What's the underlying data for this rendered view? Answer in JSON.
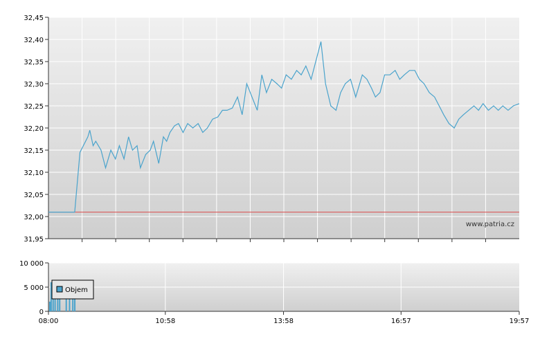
{
  "watermark": "www.patria.cz",
  "colors": {
    "price_line": "#4aa3cc",
    "reference_line": "#d94b4b",
    "volume_bar": "#4aa3cc",
    "grid": "#ffffff",
    "axis": "#333333"
  },
  "chart_data": [
    {
      "type": "line",
      "title": "",
      "xlabel": "",
      "ylabel": "",
      "ylim": [
        31.95,
        32.45
      ],
      "y_ticks": [
        "32,45",
        "32,40",
        "32,35",
        "32,30",
        "32,25",
        "32,20",
        "32,15",
        "32,10",
        "32,05",
        "32,00",
        "31,95"
      ],
      "reference_value": 32.01,
      "grid": true,
      "series": [
        {
          "x": [
            "08:00",
            "08:40",
            "08:48",
            "09:00",
            "09:03",
            "09:08",
            "09:12",
            "09:20",
            "09:27",
            "09:35",
            "09:42",
            "09:48",
            "09:55",
            "10:02",
            "10:08",
            "10:15",
            "10:20",
            "10:28",
            "10:35",
            "10:40",
            "10:48",
            "10:55",
            "11:00",
            "11:05",
            "11:12",
            "11:18",
            "11:25",
            "11:32",
            "11:40",
            "11:48",
            "11:55",
            "12:02",
            "12:10",
            "12:18",
            "12:25",
            "12:32",
            "12:40",
            "12:48",
            "12:55",
            "13:02",
            "13:10",
            "13:18",
            "13:25",
            "13:32",
            "13:40",
            "13:48",
            "13:55",
            "14:02",
            "14:10",
            "14:18",
            "14:25",
            "14:32",
            "14:40",
            "14:48",
            "14:55",
            "15:02",
            "15:10",
            "15:18",
            "15:25",
            "15:32",
            "15:40",
            "15:48",
            "15:52",
            "15:58",
            "16:05",
            "16:12",
            "16:18",
            "16:25",
            "16:32",
            "16:40",
            "16:48",
            "16:55",
            "17:02",
            "17:10",
            "17:18",
            "17:25",
            "17:32",
            "17:40",
            "17:48",
            "17:55",
            "18:02",
            "18:10",
            "18:18",
            "18:25",
            "18:32",
            "18:40",
            "18:48",
            "18:55",
            "19:02",
            "19:10",
            "19:18",
            "19:25",
            "19:32",
            "19:40",
            "19:48",
            "19:57"
          ],
          "values": [
            32.01,
            32.01,
            32.145,
            32.18,
            32.195,
            32.16,
            32.17,
            32.15,
            32.11,
            32.15,
            32.13,
            32.16,
            32.13,
            32.18,
            32.15,
            32.16,
            32.11,
            32.14,
            32.15,
            32.17,
            32.12,
            32.18,
            32.17,
            32.19,
            32.205,
            32.21,
            32.19,
            32.21,
            32.2,
            32.21,
            32.19,
            32.2,
            32.22,
            32.225,
            32.24,
            32.24,
            32.245,
            32.27,
            32.23,
            32.3,
            32.27,
            32.24,
            32.32,
            32.28,
            32.31,
            32.3,
            32.29,
            32.32,
            32.31,
            32.33,
            32.32,
            32.34,
            32.31,
            32.355,
            32.395,
            32.3,
            32.25,
            32.24,
            32.28,
            32.3,
            32.31,
            32.27,
            32.29,
            32.32,
            32.31,
            32.29,
            32.27,
            32.28,
            32.32,
            32.32,
            32.33,
            32.31,
            32.32,
            32.33,
            32.33,
            32.31,
            32.3,
            32.28,
            32.27,
            32.25,
            32.23,
            32.21,
            32.2,
            32.22,
            32.23,
            32.24,
            32.25,
            32.24,
            32.255,
            32.24,
            32.25,
            32.24,
            32.25,
            32.24,
            32.25,
            32.255
          ]
        }
      ]
    },
    {
      "type": "bar",
      "title": "",
      "ylim": [
        0,
        10000
      ],
      "y_ticks": [
        "10 000",
        "5 000",
        "0"
      ],
      "x_ticks": [
        "08:00",
        "10:58",
        "13:58",
        "16:57",
        "19:57"
      ],
      "legend": {
        "position": "top-left",
        "entries": [
          "Objem"
        ]
      },
      "series": [
        {
          "name": "Objem",
          "x": [
            "08:00",
            "08:02",
            "08:05",
            "08:08",
            "08:12",
            "08:15",
            "08:25",
            "08:30",
            "08:35",
            "08:38"
          ],
          "values": [
            2000,
            6000,
            4000,
            3000,
            6000,
            2500,
            6000,
            3500,
            6000,
            4500
          ]
        }
      ]
    }
  ]
}
